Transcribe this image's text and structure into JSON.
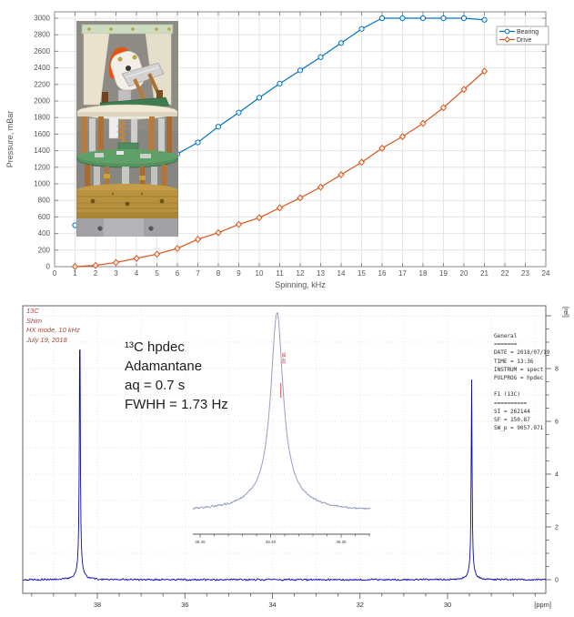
{
  "colors": {
    "bearing": "#0072BD",
    "drive": "#D95319",
    "grid_light": "#e4e4e4",
    "frame_gray": "#888888",
    "spectrum_blue": "#0909b0",
    "inset_curve": "#979ec4",
    "red_note": "#a8453c",
    "red_peak_label": "#c22a2a"
  },
  "chart_data": [
    {
      "type": "line",
      "title": "",
      "xlabel": "Spinning, kHz",
      "ylabel": "Pressure, mBar",
      "xlim": [
        0,
        24
      ],
      "ylim": [
        0,
        3000
      ],
      "xtick_step": 1,
      "ytick_step": 200,
      "grid": true,
      "legend_position": "upper right",
      "x": [
        1,
        2,
        3,
        4,
        5,
        6,
        7,
        8,
        9,
        10,
        11,
        12,
        13,
        14,
        15,
        16,
        17,
        18,
        19,
        20,
        21
      ],
      "series": [
        {
          "name": "Bearing",
          "color": "#0072BD",
          "marker": "circle",
          "values": [
            500,
            670,
            840,
            1010,
            1190,
            1360,
            1500,
            1690,
            1860,
            2040,
            2210,
            2370,
            2530,
            2700,
            2870,
            3000,
            3000,
            3000,
            3000,
            3000,
            2980
          ]
        },
        {
          "name": "Drive",
          "color": "#D95319",
          "marker": "diamond",
          "values": [
            0,
            15,
            50,
            100,
            150,
            220,
            330,
            410,
            510,
            590,
            710,
            830,
            960,
            1110,
            1260,
            1430,
            1570,
            1730,
            1920,
            2140,
            2360
          ]
        }
      ],
      "inset_photo_alt": "NMR MAS probe head photograph"
    },
    {
      "type": "line",
      "kind": "nmr-spectrum",
      "xlabel": "[ppm]",
      "ylabel": "[rel]",
      "x_axis_reversed": true,
      "xlim": [
        39.7,
        27.8
      ],
      "ylim": [
        -0.5,
        10.4
      ],
      "xticks": [
        38,
        36,
        34,
        32,
        30
      ],
      "yticks": [
        0,
        2,
        4,
        6,
        8
      ],
      "peaks": [
        {
          "ppm": 38.4,
          "height_rel": 9.8
        },
        {
          "ppm": 29.45,
          "height_rel": 7.3
        }
      ],
      "inset": {
        "xticks": [
          "38.45",
          "38.40",
          "38.35"
        ],
        "peak_ppm": 38.4,
        "peak_label": "38.40"
      }
    }
  ],
  "spectrum_text": {
    "corner_notes": [
      "13C",
      "Shim",
      "HX mode, 10 kHz",
      "July 19, 2018"
    ],
    "annotation": [
      "¹³C hpdec",
      "Adamantane",
      "aq = 0.7 s",
      "FWHH = 1.73 Hz"
    ],
    "params": [
      "General",
      "=======",
      "DATE = 2018/07/19",
      "TIME = 13:36",
      "INSTRUM = spect",
      "PULPROG = hpdec",
      "",
      "F1 (13C)",
      "==========",
      "SI = 262144",
      "SF = 150.87",
      "SW_p = 9057.971"
    ],
    "y_unit": "[rel]",
    "x_unit": "[ppm]"
  }
}
